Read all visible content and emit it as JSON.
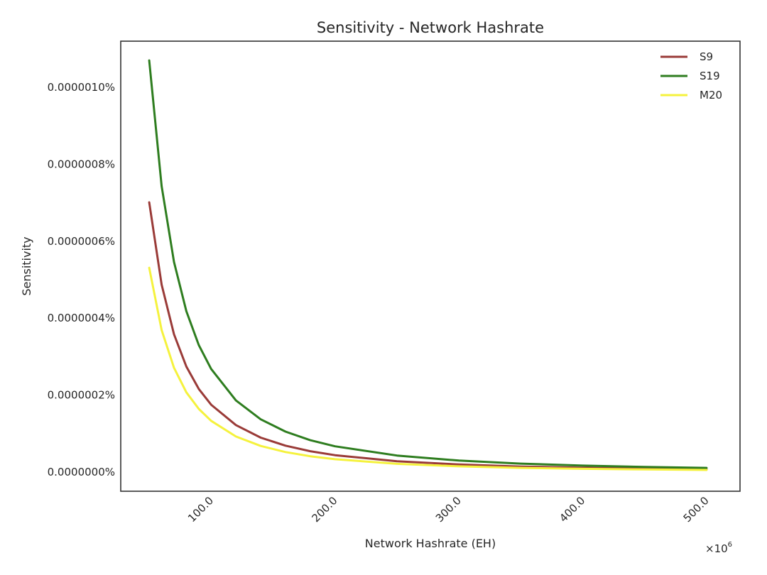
{
  "chart_data": {
    "type": "line",
    "title": "Sensitivity - Network Hashrate",
    "xlabel": "Network Hashrate (EH)",
    "ylabel": "Sensitivity",
    "x_offset_text": "×10",
    "x_offset_exponent": "6",
    "xlim": [
      27,
      527
    ],
    "ylim": [
      -5e-08,
      1.12e-06
    ],
    "x_ticks": [
      100,
      200,
      300,
      400,
      500
    ],
    "x_tick_labels": [
      "100.0",
      "200.0",
      "300.0",
      "400.0",
      "500.0"
    ],
    "y_ticks": [
      0,
      2e-07,
      4e-07,
      6e-07,
      8e-07,
      1e-06
    ],
    "y_tick_labels": [
      "0.0000000%",
      "0.0000002%",
      "0.0000004%",
      "0.0000006%",
      "0.0000008%",
      "0.0000010%"
    ],
    "grid": false,
    "legend_position": "upper right",
    "x": [
      50,
      60,
      70,
      80,
      90,
      100,
      120,
      140,
      160,
      180,
      200,
      250,
      300,
      350,
      400,
      450,
      500
    ],
    "series": [
      {
        "name": "S9",
        "color": "#9a3b38",
        "values": [
          7.01e-07,
          4.87e-07,
          3.58e-07,
          2.74e-07,
          2.16e-07,
          1.75e-07,
          1.22e-07,
          8.94e-08,
          6.84e-08,
          5.41e-08,
          4.38e-08,
          2.8e-08,
          1.95e-08,
          1.43e-08,
          1.1e-08,
          8.7e-09,
          7e-09
        ]
      },
      {
        "name": "S19",
        "color": "#2e7d1f",
        "values": [
          1.07e-06,
          7.43e-07,
          5.46e-07,
          4.18e-07,
          3.3e-07,
          2.68e-07,
          1.86e-07,
          1.37e-07,
          1.05e-07,
          8.26e-08,
          6.69e-08,
          4.28e-08,
          2.97e-08,
          2.18e-08,
          1.67e-08,
          1.32e-08,
          1.07e-08
        ]
      },
      {
        "name": "M20",
        "color": "#f5f23d",
        "values": [
          5.31e-07,
          3.69e-07,
          2.71e-07,
          2.07e-07,
          1.64e-07,
          1.33e-07,
          9.22e-08,
          6.77e-08,
          5.18e-08,
          4.1e-08,
          3.32e-08,
          2.12e-08,
          1.47e-08,
          1.08e-08,
          8.3e-09,
          6.6e-09,
          5.3e-09
        ]
      }
    ]
  }
}
